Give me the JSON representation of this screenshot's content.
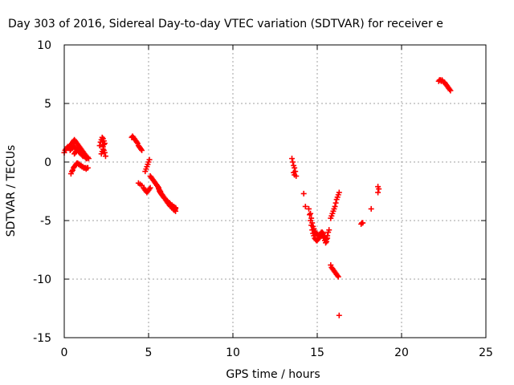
{
  "chart_data": {
    "type": "scatter",
    "title": "Day 303 of 2016, Sidereal Day-to-day VTEC variation (SDTVAR) for receiver e",
    "xlabel": "GPS time / hours",
    "ylabel": "SDTVAR / TECUs",
    "xlim": [
      0,
      25
    ],
    "ylim": [
      -15,
      10
    ],
    "x_ticks": [
      0,
      5,
      10,
      15,
      20,
      25
    ],
    "y_ticks": [
      -15,
      -10,
      -5,
      0,
      5,
      10
    ],
    "x_tick_labels": [
      "0",
      "5",
      "10",
      "15",
      "20",
      "25"
    ],
    "y_tick_labels": [
      "-15",
      "-10",
      "-5",
      "0",
      "5",
      "10"
    ],
    "grid": true,
    "marker": "plus",
    "color": "#ff0000",
    "series": [
      {
        "x": [
          0.0,
          0.05,
          0.1,
          0.15,
          0.2,
          0.25,
          0.3,
          0.35,
          0.4,
          0.45,
          0.5,
          0.55,
          0.6,
          0.65,
          0.7,
          0.75,
          0.8,
          0.85,
          0.9,
          0.95,
          1.0,
          1.05,
          1.1,
          1.15,
          1.2,
          1.25,
          1.3,
          1.35,
          1.4,
          1.45,
          0.35,
          0.4,
          0.45,
          0.5,
          0.55,
          0.6,
          0.65,
          0.7,
          0.75,
          0.8,
          0.85,
          0.9,
          0.95,
          1.0,
          1.05,
          1.1,
          1.15,
          1.2,
          1.25,
          1.3,
          1.35,
          0.6,
          0.65,
          0.7,
          0.75,
          0.8,
          0.85,
          0.9,
          0.95,
          1.0,
          1.05,
          1.1,
          0.4,
          0.45,
          0.5,
          0.55,
          0.6,
          0.65,
          0.7,
          0.75,
          0.8,
          0.85,
          0.9,
          0.95,
          1.0,
          1.05,
          1.1,
          1.15,
          1.2,
          1.25,
          1.3,
          1.35,
          1.4,
          2.1,
          2.15,
          2.2,
          2.25,
          2.3,
          2.35,
          2.4,
          2.2,
          2.25,
          2.3,
          2.35,
          2.4,
          2.45,
          2.3,
          2.35,
          4.0,
          4.05,
          4.1,
          4.15,
          4.2,
          4.25,
          4.3,
          4.35,
          4.4,
          4.45,
          4.5,
          4.55,
          4.6,
          4.4,
          4.5,
          4.6,
          4.7,
          4.75,
          4.8,
          4.85,
          4.9,
          4.95,
          5.0,
          5.05,
          5.1,
          4.8,
          4.85,
          4.9,
          4.95,
          5.0,
          5.05,
          5.1,
          5.15,
          5.2,
          5.25,
          5.3,
          5.35,
          5.4,
          5.45,
          5.5,
          5.55,
          5.6,
          5.65,
          5.7,
          5.75,
          5.8,
          5.85,
          5.9,
          5.95,
          6.0,
          6.05,
          6.1,
          6.15,
          6.2,
          6.25,
          6.3,
          6.35,
          6.4,
          6.45,
          6.5,
          6.55,
          6.6,
          5.5,
          5.55,
          5.6,
          5.65,
          5.7,
          5.75,
          5.8,
          5.85,
          5.9,
          5.95,
          6.0,
          6.05,
          6.1,
          6.15,
          6.2,
          6.25,
          6.3,
          6.35,
          6.4,
          6.45,
          6.5,
          6.55,
          6.6,
          5.7,
          5.75,
          5.8,
          5.85,
          5.9,
          5.95,
          6.0,
          6.05,
          6.1,
          6.15,
          6.2,
          6.25,
          6.3,
          6.35,
          6.4,
          6.45,
          6.5,
          6.55,
          6.6,
          13.5,
          13.55,
          13.6,
          13.65,
          13.7,
          13.75,
          13.6,
          13.65,
          14.2,
          14.3,
          14.5,
          14.55,
          14.6,
          14.65,
          14.7,
          14.75,
          14.8,
          14.85,
          14.9,
          14.95,
          15.0,
          15.05,
          15.1,
          15.15,
          15.2,
          15.25,
          15.3,
          15.35,
          15.4,
          15.45,
          15.5,
          15.55,
          15.6,
          15.65,
          15.7,
          14.6,
          14.65,
          14.7,
          14.75,
          14.8,
          14.85,
          14.9,
          14.95,
          15.0,
          15.05,
          15.1,
          15.15,
          15.2,
          15.25,
          15.3,
          15.35,
          15.4,
          15.45,
          15.5,
          15.55,
          15.6,
          15.8,
          15.85,
          15.9,
          15.95,
          16.0,
          16.05,
          16.1,
          16.15,
          16.2,
          16.25,
          16.3,
          15.8,
          15.85,
          15.9,
          15.95,
          16.0,
          16.05,
          16.1,
          16.15,
          16.2,
          16.25,
          16.3,
          17.6,
          17.65,
          17.7,
          18.2,
          18.6,
          18.65,
          18.6,
          22.2,
          22.25,
          22.3,
          22.35,
          22.4,
          22.45,
          22.5,
          22.55,
          22.6,
          22.65,
          22.7,
          22.75,
          22.8,
          22.85,
          22.9
        ],
        "y": [
          0.8,
          1.0,
          1.1,
          1.2,
          1.3,
          1.2,
          1.3,
          1.4,
          1.5,
          1.6,
          1.7,
          1.8,
          1.9,
          1.8,
          1.7,
          1.6,
          1.5,
          1.4,
          1.3,
          1.2,
          1.1,
          1.0,
          0.9,
          0.8,
          0.7,
          0.6,
          0.5,
          0.4,
          0.4,
          0.3,
          1.0,
          1.1,
          1.2,
          1.2,
          1.3,
          1.3,
          1.2,
          1.1,
          1.1,
          1.0,
          0.9,
          0.9,
          0.8,
          0.8,
          0.7,
          0.6,
          0.6,
          0.5,
          0.4,
          0.3,
          0.3,
          0.7,
          0.8,
          0.9,
          1.0,
          1.0,
          0.9,
          0.8,
          0.8,
          0.7,
          0.6,
          0.5,
          -1.0,
          -0.8,
          -0.7,
          -0.5,
          -0.4,
          -0.3,
          -0.2,
          -0.1,
          -0.1,
          -0.2,
          -0.2,
          -0.3,
          -0.3,
          -0.4,
          -0.4,
          -0.5,
          -0.5,
          -0.5,
          -0.6,
          -0.5,
          -0.5,
          1.4,
          1.7,
          1.9,
          2.1,
          2.0,
          1.8,
          1.6,
          0.7,
          0.9,
          1.1,
          1.0,
          0.8,
          0.5,
          1.3,
          1.5,
          2.1,
          2.2,
          2.1,
          2.0,
          1.9,
          1.8,
          1.7,
          1.6,
          1.4,
          1.3,
          1.2,
          1.1,
          1.0,
          -1.8,
          -1.9,
          -2.0,
          -2.2,
          -2.3,
          -2.4,
          -2.5,
          -2.6,
          -2.5,
          -2.4,
          -2.3,
          -2.2,
          -0.8,
          -0.6,
          -0.4,
          -0.2,
          0.0,
          0.2,
          -1.2,
          -1.3,
          -1.4,
          -1.5,
          -1.6,
          -1.7,
          -1.8,
          -1.9,
          -2.0,
          -2.1,
          -2.2,
          -2.4,
          -2.5,
          -2.7,
          -2.8,
          -2.9,
          -3.0,
          -3.1,
          -3.2,
          -3.3,
          -3.4,
          -3.5,
          -3.5,
          -3.6,
          -3.7,
          -3.7,
          -3.8,
          -3.9,
          -3.9,
          -4.0,
          -4.0,
          -2.0,
          -2.1,
          -2.3,
          -2.5,
          -2.6,
          -2.7,
          -2.8,
          -2.9,
          -3.0,
          -3.1,
          -3.2,
          -3.3,
          -3.4,
          -3.5,
          -3.6,
          -3.7,
          -3.8,
          -3.8,
          -3.9,
          -4.0,
          -4.1,
          -4.1,
          -4.2,
          -2.6,
          -2.7,
          -2.8,
          -2.9,
          -3.0,
          -3.1,
          -3.2,
          -3.3,
          -3.3,
          -3.4,
          -3.5,
          -3.5,
          -3.6,
          -3.7,
          -3.7,
          -3.8,
          -3.8,
          -3.9,
          -3.9,
          0.3,
          0.0,
          -0.3,
          -0.5,
          -0.8,
          -1.2,
          -0.9,
          -1.1,
          -2.7,
          -3.8,
          -4.0,
          -4.5,
          -5.0,
          -5.4,
          -5.8,
          -6.1,
          -6.3,
          -6.5,
          -6.6,
          -6.7,
          -6.7,
          -6.6,
          -6.5,
          -6.4,
          -6.3,
          -6.2,
          -6.2,
          -6.3,
          -6.5,
          -6.7,
          -6.9,
          -6.6,
          -6.3,
          -6.0,
          -5.8,
          -4.4,
          -4.8,
          -5.2,
          -5.5,
          -5.7,
          -5.9,
          -6.0,
          -6.1,
          -6.2,
          -6.3,
          -6.3,
          -6.2,
          -6.1,
          -6.0,
          -6.0,
          -6.1,
          -6.3,
          -6.4,
          -6.6,
          -6.8,
          -6.5,
          -4.8,
          -4.6,
          -4.4,
          -4.2,
          -4.0,
          -3.8,
          -3.5,
          -3.2,
          -3.0,
          -2.8,
          -2.6,
          -8.8,
          -9.0,
          -9.1,
          -9.2,
          -9.3,
          -9.4,
          -9.5,
          -9.6,
          -9.7,
          -9.8,
          -13.1,
          -5.3,
          -5.2,
          -5.2,
          -4.0,
          -2.6,
          -2.3,
          -2.1,
          6.9,
          7.0,
          7.0,
          6.9,
          7.0,
          6.9,
          6.8,
          6.8,
          6.7,
          6.6,
          6.5,
          6.4,
          6.3,
          6.2,
          6.1
        ]
      }
    ]
  }
}
